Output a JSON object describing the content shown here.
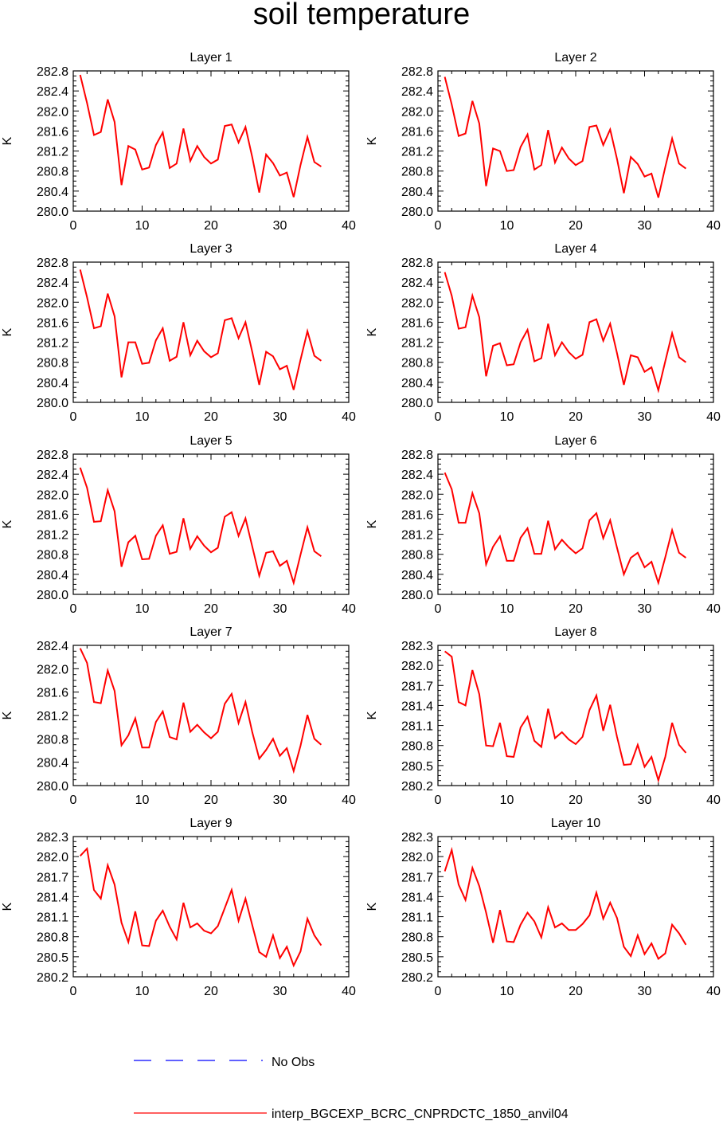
{
  "title": "soil temperature",
  "colors": {
    "model": "#ff0000",
    "obs": "#0000ff",
    "axis": "#000000"
  },
  "legend": {
    "obs_label": "No Obs",
    "model_label": "interp_BGCEXP_BCRC_CNPRDCTC_1850_anvil04"
  },
  "chart_data": [
    {
      "type": "line",
      "title": "Layer 1",
      "ylabel": "K",
      "xlim": [
        0,
        40
      ],
      "ylim": [
        280.0,
        282.8
      ],
      "xticks": [
        "0",
        "10",
        "20",
        "30",
        "40"
      ],
      "yticks": [
        "280.0",
        "280.4",
        "280.8",
        "281.2",
        "281.6",
        "282.0",
        "282.4",
        "282.8"
      ],
      "series": [
        {
          "name": "interp_BGCEXP_BCRC_CNPRDCTC_1850_anvil04",
          "x": [
            1,
            2,
            3,
            4,
            5,
            6,
            7,
            8,
            9,
            10,
            11,
            12,
            13,
            14,
            15,
            16,
            17,
            18,
            19,
            20,
            21,
            22,
            23,
            24,
            25,
            26,
            27,
            28,
            29,
            30,
            31,
            32,
            33,
            34,
            35,
            36
          ],
          "y": [
            282.72,
            282.16,
            281.52,
            281.58,
            282.23,
            281.78,
            280.52,
            281.3,
            281.23,
            280.83,
            280.87,
            281.32,
            281.57,
            280.86,
            280.95,
            281.65,
            281.0,
            281.3,
            281.08,
            280.95,
            281.03,
            281.7,
            281.73,
            281.37,
            281.68,
            281.07,
            280.37,
            281.13,
            280.96,
            280.71,
            280.77,
            280.28,
            280.92,
            281.48,
            280.98,
            280.89
          ]
        }
      ]
    },
    {
      "type": "line",
      "title": "Layer 2",
      "ylabel": "K",
      "xlim": [
        0,
        40
      ],
      "ylim": [
        280.0,
        282.8
      ],
      "xticks": [
        "0",
        "10",
        "20",
        "30",
        "40"
      ],
      "yticks": [
        "280.0",
        "280.4",
        "280.8",
        "281.2",
        "281.6",
        "282.0",
        "282.4",
        "282.8"
      ],
      "series": [
        {
          "name": "interp_BGCEXP_BCRC_CNPRDCTC_1850_anvil04",
          "x": [
            1,
            2,
            3,
            4,
            5,
            6,
            7,
            8,
            9,
            10,
            11,
            12,
            13,
            14,
            15,
            16,
            17,
            18,
            19,
            20,
            21,
            22,
            23,
            24,
            25,
            26,
            27,
            28,
            29,
            30,
            31,
            32,
            33,
            34,
            35,
            36
          ],
          "y": [
            282.68,
            282.13,
            281.5,
            281.55,
            282.2,
            281.75,
            280.5,
            281.25,
            281.2,
            280.8,
            280.82,
            281.28,
            281.53,
            280.83,
            280.92,
            281.62,
            280.97,
            281.27,
            281.05,
            280.92,
            281.0,
            281.68,
            281.71,
            281.32,
            281.63,
            281.04,
            280.36,
            281.08,
            280.94,
            280.69,
            280.75,
            280.27,
            280.88,
            281.45,
            280.95,
            280.85
          ]
        }
      ]
    },
    {
      "type": "line",
      "title": "Layer 3",
      "ylabel": "K",
      "xlim": [
        0,
        40
      ],
      "ylim": [
        280.0,
        282.8
      ],
      "xticks": [
        "0",
        "10",
        "20",
        "30",
        "40"
      ],
      "yticks": [
        "280.0",
        "280.4",
        "280.8",
        "281.2",
        "281.6",
        "282.0",
        "282.4",
        "282.8"
      ],
      "series": [
        {
          "name": "interp_BGCEXP_BCRC_CNPRDCTC_1850_anvil04",
          "x": [
            1,
            2,
            3,
            4,
            5,
            6,
            7,
            8,
            9,
            10,
            11,
            12,
            13,
            14,
            15,
            16,
            17,
            18,
            19,
            20,
            21,
            22,
            23,
            24,
            25,
            26,
            27,
            28,
            29,
            30,
            31,
            32,
            33,
            34,
            35,
            36
          ],
          "y": [
            282.65,
            282.1,
            281.48,
            281.52,
            282.17,
            281.72,
            280.5,
            281.2,
            281.2,
            280.77,
            280.79,
            281.24,
            281.48,
            280.83,
            280.91,
            281.6,
            280.94,
            281.23,
            281.02,
            280.9,
            280.98,
            281.64,
            281.68,
            281.28,
            281.6,
            281.0,
            280.35,
            281.01,
            280.92,
            280.66,
            280.73,
            280.25,
            280.85,
            281.42,
            280.93,
            280.83
          ]
        }
      ]
    },
    {
      "type": "line",
      "title": "Layer 4",
      "ylabel": "K",
      "xlim": [
        0,
        40
      ],
      "ylim": [
        280.0,
        282.8
      ],
      "xticks": [
        "0",
        "10",
        "20",
        "30",
        "40"
      ],
      "yticks": [
        "280.0",
        "280.4",
        "280.8",
        "281.2",
        "281.6",
        "282.0",
        "282.4",
        "282.8"
      ],
      "series": [
        {
          "name": "interp_BGCEXP_BCRC_CNPRDCTC_1850_anvil04",
          "x": [
            1,
            2,
            3,
            4,
            5,
            6,
            7,
            8,
            9,
            10,
            11,
            12,
            13,
            14,
            15,
            16,
            17,
            18,
            19,
            20,
            21,
            22,
            23,
            24,
            25,
            26,
            27,
            28,
            29,
            30,
            31,
            32,
            33,
            34,
            35,
            36
          ],
          "y": [
            282.6,
            282.13,
            281.47,
            281.5,
            282.13,
            281.7,
            280.52,
            281.13,
            281.18,
            280.74,
            280.76,
            281.2,
            281.45,
            280.82,
            280.88,
            281.57,
            280.94,
            281.2,
            281.0,
            280.87,
            280.95,
            281.6,
            281.66,
            281.23,
            281.57,
            280.98,
            280.35,
            280.94,
            280.9,
            280.61,
            280.7,
            280.24,
            280.82,
            281.38,
            280.9,
            280.8
          ]
        }
      ]
    },
    {
      "type": "line",
      "title": "Layer 5",
      "ylabel": "K",
      "xlim": [
        0,
        40
      ],
      "ylim": [
        280.0,
        282.8
      ],
      "xticks": [
        "0",
        "10",
        "20",
        "30",
        "40"
      ],
      "yticks": [
        "280.0",
        "280.4",
        "280.8",
        "281.2",
        "281.6",
        "282.0",
        "282.4",
        "282.8"
      ],
      "series": [
        {
          "name": "interp_BGCEXP_BCRC_CNPRDCTC_1850_anvil04",
          "x": [
            1,
            2,
            3,
            4,
            5,
            6,
            7,
            8,
            9,
            10,
            11,
            12,
            13,
            14,
            15,
            16,
            17,
            18,
            19,
            20,
            21,
            22,
            23,
            24,
            25,
            26,
            27,
            28,
            29,
            30,
            31,
            32,
            33,
            34,
            35,
            36
          ],
          "y": [
            282.53,
            282.13,
            281.45,
            281.46,
            282.08,
            281.66,
            280.55,
            281.04,
            281.17,
            280.7,
            280.71,
            281.17,
            281.38,
            280.81,
            280.85,
            281.52,
            280.91,
            281.16,
            280.97,
            280.84,
            280.93,
            281.55,
            281.64,
            281.17,
            281.52,
            280.95,
            280.37,
            280.83,
            280.86,
            280.57,
            280.67,
            280.23,
            280.79,
            281.34,
            280.86,
            280.76
          ]
        }
      ]
    },
    {
      "type": "line",
      "title": "Layer 6",
      "ylabel": "K",
      "xlim": [
        0,
        40
      ],
      "ylim": [
        280.0,
        282.8
      ],
      "xticks": [
        "0",
        "10",
        "20",
        "30",
        "40"
      ],
      "yticks": [
        "280.0",
        "280.4",
        "280.8",
        "281.2",
        "281.6",
        "282.0",
        "282.4",
        "282.8"
      ],
      "series": [
        {
          "name": "interp_BGCEXP_BCRC_CNPRDCTC_1850_anvil04",
          "x": [
            1,
            2,
            3,
            4,
            5,
            6,
            7,
            8,
            9,
            10,
            11,
            12,
            13,
            14,
            15,
            16,
            17,
            18,
            19,
            20,
            21,
            22,
            23,
            24,
            25,
            26,
            27,
            28,
            29,
            30,
            31,
            32,
            33,
            34,
            35,
            36
          ],
          "y": [
            282.43,
            282.1,
            281.43,
            281.43,
            282.02,
            281.62,
            280.6,
            280.95,
            281.16,
            280.67,
            280.67,
            281.13,
            281.32,
            280.81,
            280.81,
            281.47,
            280.9,
            281.09,
            280.94,
            280.82,
            280.92,
            281.48,
            281.62,
            281.12,
            281.48,
            280.93,
            280.4,
            280.73,
            280.83,
            280.54,
            280.65,
            280.23,
            280.74,
            281.28,
            280.83,
            280.73
          ]
        }
      ]
    },
    {
      "type": "line",
      "title": "Layer 7",
      "ylabel": "K",
      "xlim": [
        0,
        40
      ],
      "ylim": [
        280.0,
        282.4
      ],
      "xticks": [
        "0",
        "10",
        "20",
        "30",
        "40"
      ],
      "yticks": [
        "280.0",
        "280.4",
        "280.8",
        "281.2",
        "281.6",
        "282.0",
        "282.4"
      ],
      "series": [
        {
          "name": "interp_BGCEXP_BCRC_CNPRDCTC_1850_anvil04",
          "x": [
            1,
            2,
            3,
            4,
            5,
            6,
            7,
            8,
            9,
            10,
            11,
            12,
            13,
            14,
            15,
            16,
            17,
            18,
            19,
            20,
            21,
            22,
            23,
            24,
            25,
            26,
            27,
            28,
            29,
            30,
            31,
            32,
            33,
            34,
            35,
            36
          ],
          "y": [
            282.35,
            282.1,
            281.43,
            281.41,
            281.97,
            281.62,
            280.69,
            280.86,
            281.15,
            280.65,
            280.65,
            281.09,
            281.27,
            280.83,
            280.79,
            281.42,
            280.92,
            281.04,
            280.91,
            280.81,
            280.92,
            281.4,
            281.57,
            281.07,
            281.43,
            280.91,
            280.46,
            280.61,
            280.8,
            280.51,
            280.64,
            280.25,
            280.68,
            281.21,
            280.8,
            280.7
          ]
        }
      ]
    },
    {
      "type": "line",
      "title": "Layer 8",
      "ylabel": "K",
      "xlim": [
        0,
        40
      ],
      "ylim": [
        280.2,
        282.3
      ],
      "xticks": [
        "0",
        "10",
        "20",
        "30",
        "40"
      ],
      "yticks": [
        "280.2",
        "280.5",
        "280.8",
        "281.1",
        "281.4",
        "281.7",
        "282.0",
        "282.3"
      ],
      "series": [
        {
          "name": "interp_BGCEXP_BCRC_CNPRDCTC_1850_anvil04",
          "x": [
            1,
            2,
            3,
            4,
            5,
            6,
            7,
            8,
            9,
            10,
            11,
            12,
            13,
            14,
            15,
            16,
            17,
            18,
            19,
            20,
            21,
            22,
            23,
            24,
            25,
            26,
            27,
            28,
            29,
            30,
            31,
            32,
            33,
            34,
            35,
            36
          ],
          "y": [
            282.21,
            282.13,
            281.45,
            281.4,
            281.93,
            281.57,
            280.8,
            280.79,
            281.14,
            280.64,
            280.63,
            281.07,
            281.23,
            280.87,
            280.78,
            281.35,
            280.91,
            281.0,
            280.89,
            280.82,
            280.93,
            281.33,
            281.55,
            281.02,
            281.41,
            280.93,
            280.51,
            280.52,
            280.81,
            280.48,
            280.63,
            280.28,
            280.63,
            281.14,
            280.81,
            280.69
          ]
        }
      ]
    },
    {
      "type": "line",
      "title": "Layer 9",
      "ylabel": "K",
      "xlim": [
        0,
        40
      ],
      "ylim": [
        280.2,
        282.3
      ],
      "xticks": [
        "0",
        "10",
        "20",
        "30",
        "40"
      ],
      "yticks": [
        "280.2",
        "280.5",
        "280.8",
        "281.1",
        "281.4",
        "281.7",
        "282.0",
        "282.3"
      ],
      "series": [
        {
          "name": "interp_BGCEXP_BCRC_CNPRDCTC_1850_anvil04",
          "x": [
            1,
            2,
            3,
            4,
            5,
            6,
            7,
            8,
            9,
            10,
            11,
            12,
            13,
            14,
            15,
            16,
            17,
            18,
            19,
            20,
            21,
            22,
            23,
            24,
            25,
            26,
            27,
            28,
            29,
            30,
            31,
            32,
            33,
            34,
            35,
            36
          ],
          "y": [
            282.01,
            282.12,
            281.5,
            281.37,
            281.87,
            281.58,
            281.01,
            280.72,
            281.18,
            280.67,
            280.66,
            281.04,
            281.19,
            280.95,
            280.76,
            281.31,
            280.94,
            281.0,
            280.89,
            280.85,
            280.96,
            281.23,
            281.5,
            281.04,
            281.37,
            280.97,
            280.57,
            280.5,
            280.82,
            280.48,
            280.65,
            280.37,
            280.58,
            281.07,
            280.82,
            280.67
          ]
        }
      ]
    },
    {
      "type": "line",
      "title": "Layer 10",
      "ylabel": "K",
      "xlim": [
        0,
        40
      ],
      "ylim": [
        280.2,
        282.3
      ],
      "xticks": [
        "0",
        "10",
        "20",
        "30",
        "40"
      ],
      "yticks": [
        "280.2",
        "280.5",
        "280.8",
        "281.1",
        "281.4",
        "281.7",
        "282.0",
        "282.3"
      ],
      "series": [
        {
          "name": "interp_BGCEXP_BCRC_CNPRDCTC_1850_anvil04",
          "x": [
            1,
            2,
            3,
            4,
            5,
            6,
            7,
            8,
            9,
            10,
            11,
            12,
            13,
            14,
            15,
            16,
            17,
            18,
            19,
            20,
            21,
            22,
            23,
            24,
            25,
            26,
            27,
            28,
            29,
            30,
            31,
            32,
            33,
            34,
            35,
            36
          ],
          "y": [
            281.78,
            282.1,
            281.58,
            281.35,
            281.83,
            281.56,
            281.16,
            280.71,
            281.2,
            280.73,
            280.72,
            280.98,
            281.16,
            281.03,
            280.79,
            281.24,
            280.94,
            281.0,
            280.9,
            280.9,
            280.99,
            281.12,
            281.46,
            281.07,
            281.31,
            281.08,
            280.65,
            280.51,
            280.82,
            280.54,
            280.7,
            280.47,
            280.55,
            280.98,
            280.85,
            280.68
          ]
        }
      ]
    }
  ]
}
